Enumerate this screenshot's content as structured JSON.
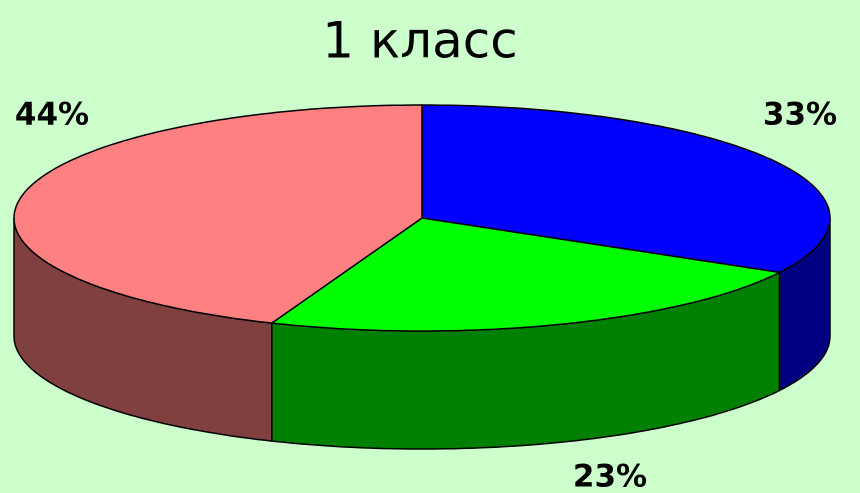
{
  "chart_data": {
    "type": "pie3d",
    "title": "1 класс",
    "categories": [
      null,
      null,
      null
    ],
    "values": [
      33,
      23,
      44
    ],
    "value_labels": [
      "33%",
      "23%",
      "44%"
    ],
    "colors": [
      "#0000ff",
      "#00ff00",
      "#ff8080"
    ],
    "side_colors": [
      "#000080",
      "#008000",
      "#804040"
    ]
  }
}
